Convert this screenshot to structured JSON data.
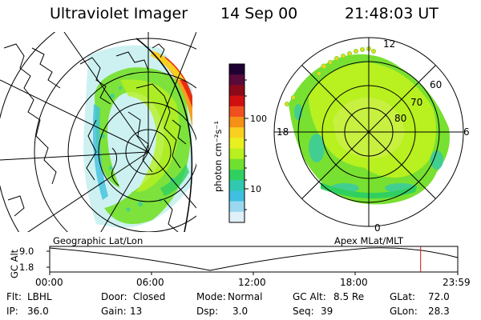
{
  "header": {
    "instrument": "Ultraviolet Imager",
    "date": "14 Sep 00",
    "time": "21:48:03 UT"
  },
  "colorbar": {
    "unit_label": "photon cm⁻²s⁻¹",
    "ticks": [
      "100",
      "10"
    ],
    "colors": [
      "#1e0033",
      "#5a0a3a",
      "#8b0a1a",
      "#d01010",
      "#f05020",
      "#f59018",
      "#fad020",
      "#e8f020",
      "#b8f020",
      "#70e030",
      "#30d060",
      "#30c8b0",
      "#40c0e0",
      "#9ad8f0",
      "#e0f0f8"
    ]
  },
  "left_map": {
    "label": "Geographic Lat/Lon"
  },
  "right_map": {
    "label": "Apex  MLat/MLT",
    "mlt_labels": {
      "top": "12",
      "left": "18",
      "right": "6",
      "bottom": "0"
    },
    "lat_labels": [
      "60",
      "70",
      "80"
    ]
  },
  "timeline": {
    "axis_label": "GC Alt",
    "y_labels": [
      "9.0",
      "1.8"
    ],
    "x_labels": [
      "00:00",
      "06:00",
      "12:00",
      "18:00",
      "23:59"
    ],
    "current_time_fraction": 0.909
  },
  "status": {
    "row1": [
      {
        "label": "Flt:",
        "value": "LBHL"
      },
      {
        "label": "Door:",
        "value": "Closed"
      },
      {
        "label": "Mode:",
        "value": "Normal"
      },
      {
        "label": "GC Alt:",
        "value": "8.5 Re"
      },
      {
        "label": "GLat:",
        "value": "72.0"
      }
    ],
    "row2": [
      {
        "label": "IP:",
        "value": "36.0"
      },
      {
        "label": "Gain:",
        "value": "13"
      },
      {
        "label": "Dsp:",
        "value": "3.0"
      },
      {
        "label": "Seq:",
        "value": "39"
      },
      {
        "label": "GLon:",
        "value": "28.3"
      }
    ]
  }
}
